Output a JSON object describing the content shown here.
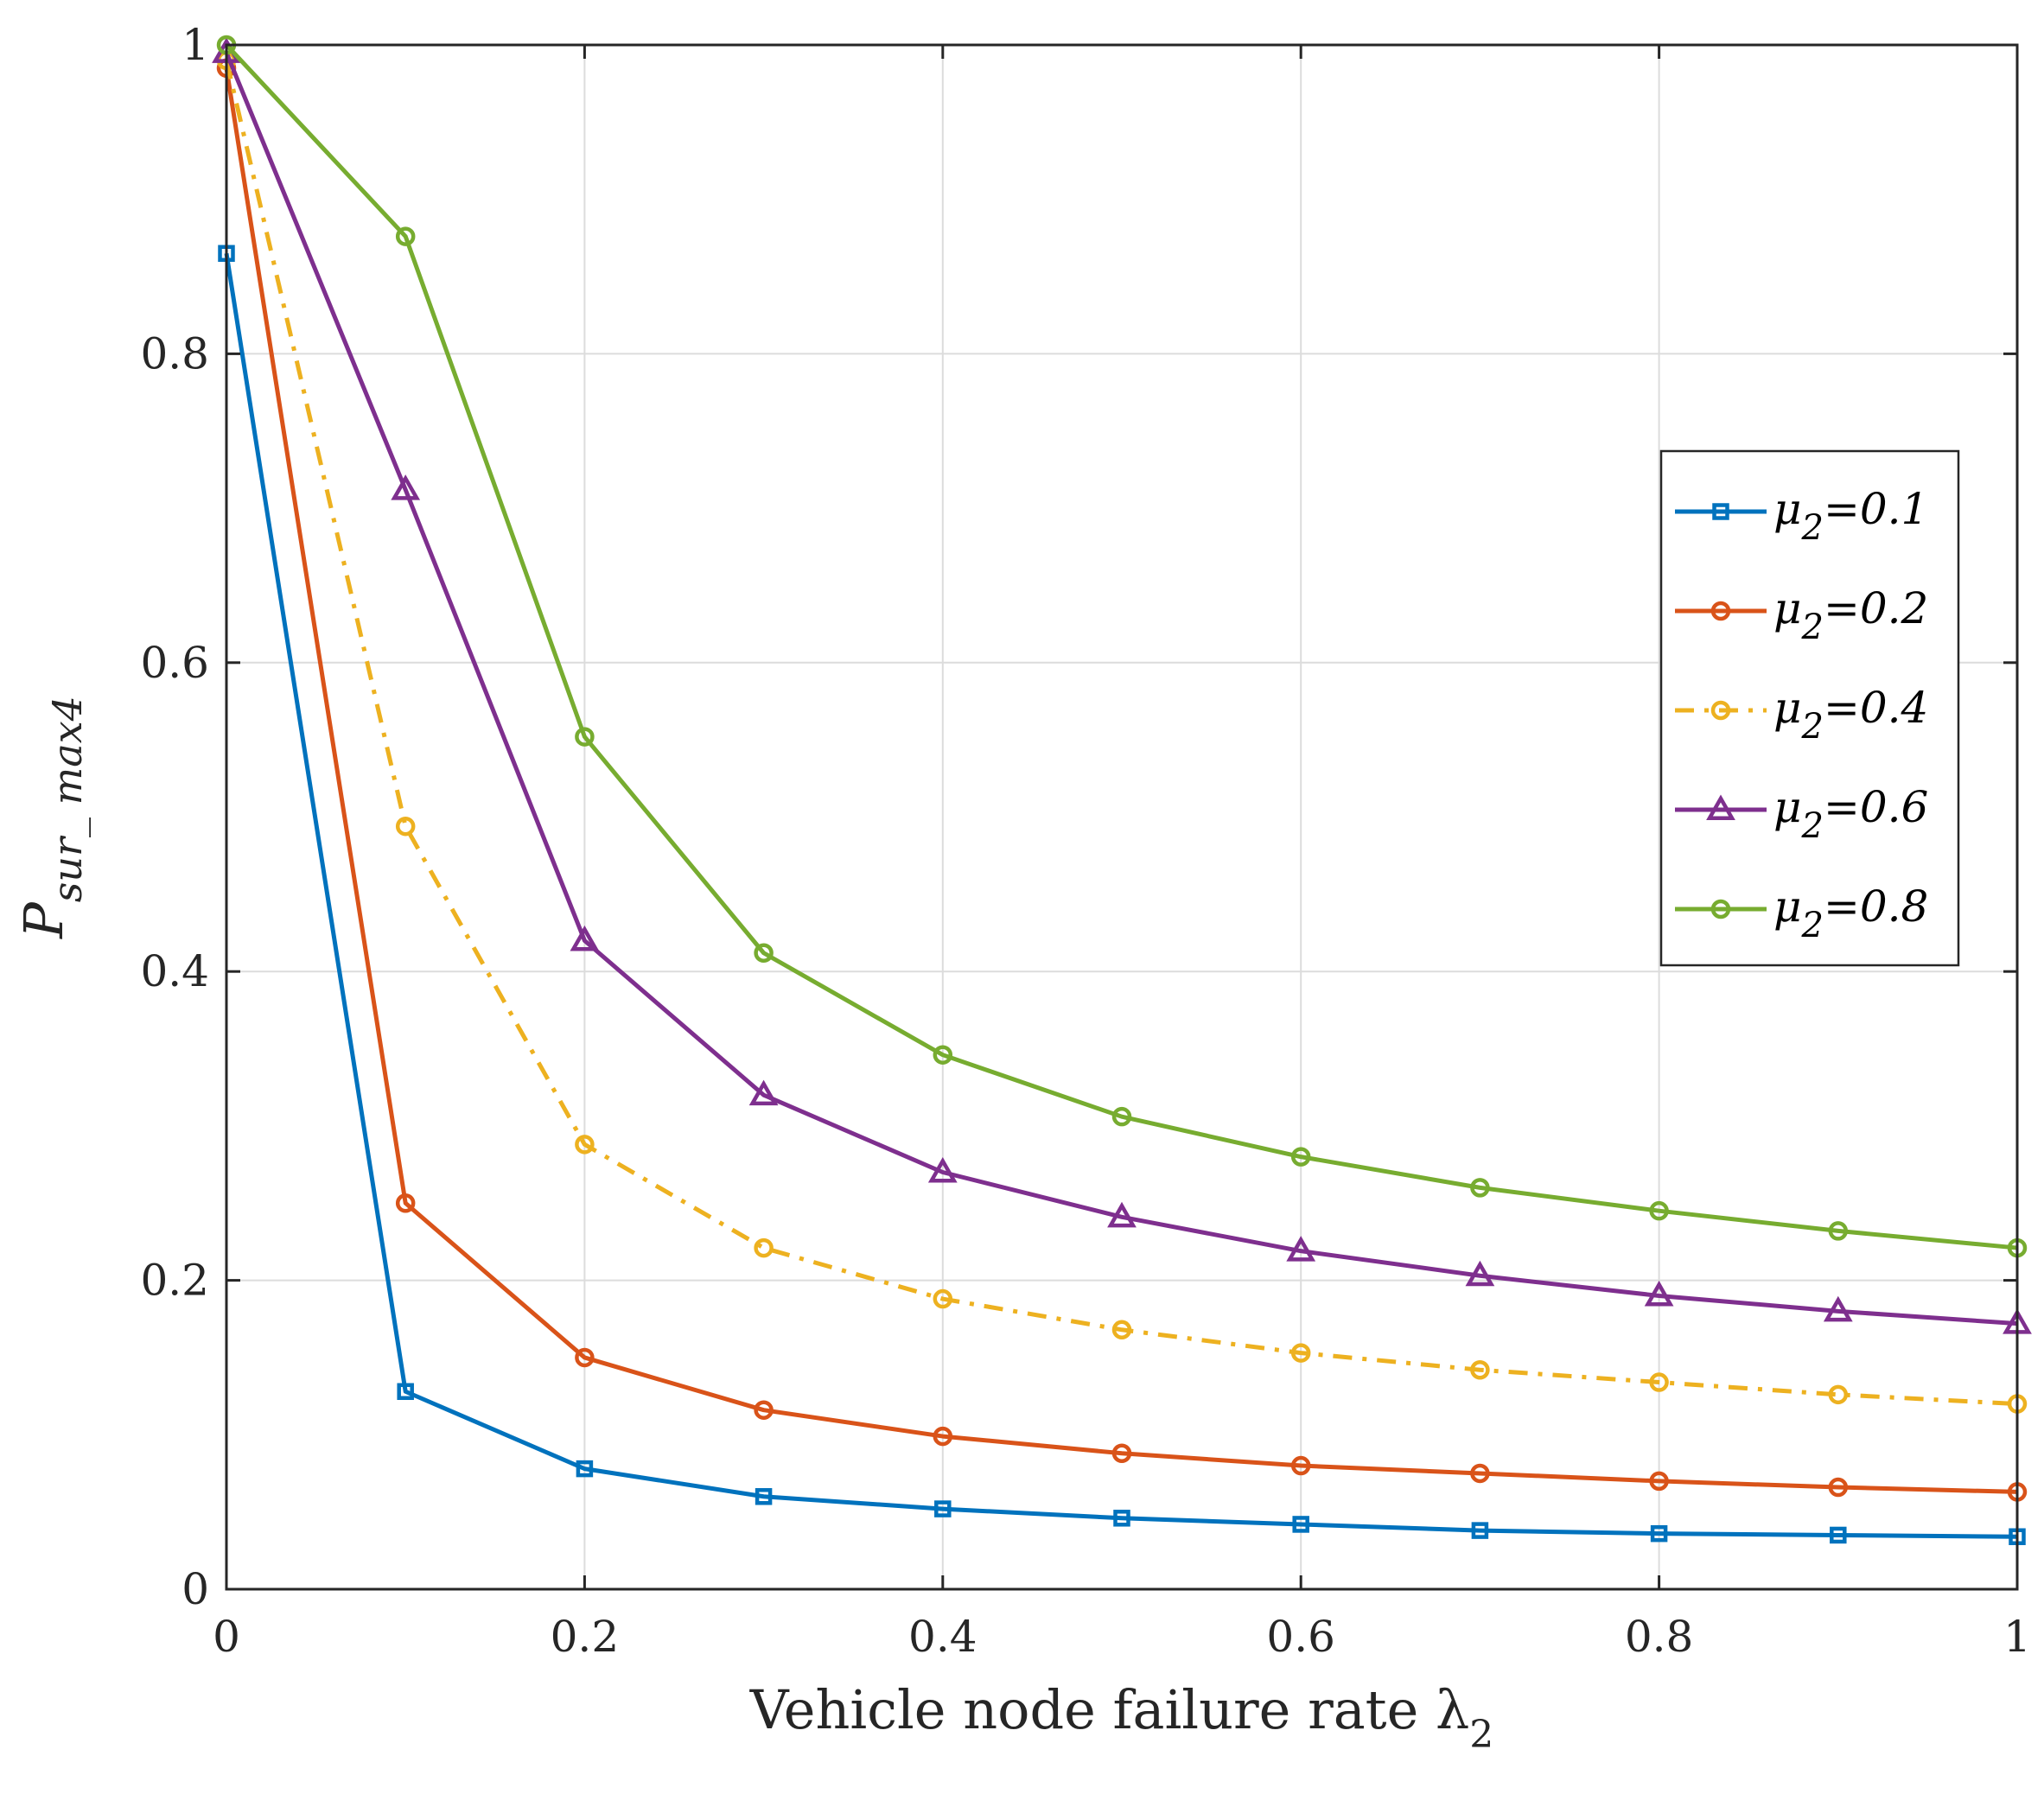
{
  "chart_data": {
    "type": "line",
    "title": "",
    "xlabel": "Vehicle node failure rate λ",
    "xlabel_sub": "2",
    "ylabel_main": "P",
    "ylabel_sub": "sur_ max4",
    "xlim": [
      0,
      1
    ],
    "ylim": [
      0,
      1
    ],
    "x_ticks": [
      {
        "value": 0,
        "label": "0"
      },
      {
        "value": 0.2,
        "label": "0.2"
      },
      {
        "value": 0.4,
        "label": "0.4"
      },
      {
        "value": 0.6,
        "label": "0.6"
      },
      {
        "value": 0.8,
        "label": "0.8"
      },
      {
        "value": 1,
        "label": "1"
      }
    ],
    "y_ticks": [
      {
        "value": 0,
        "label": "0"
      },
      {
        "value": 0.2,
        "label": "0.2"
      },
      {
        "value": 0.4,
        "label": "0.4"
      },
      {
        "value": 0.6,
        "label": "0.6"
      },
      {
        "value": 0.8,
        "label": "0.8"
      },
      {
        "value": 1,
        "label": "1"
      }
    ],
    "grid": true,
    "legend_position": "right",
    "x": [
      0,
      0.1,
      0.2,
      0.3,
      0.4,
      0.5,
      0.6,
      0.7,
      0.8,
      0.9,
      1.0
    ],
    "series": [
      {
        "name": "μ2=0.1",
        "legend_prefix": "μ",
        "legend_sub": "2",
        "legend_suffix": "=0.1",
        "color": "#0072BD",
        "marker": "square",
        "dash": "solid",
        "values": [
          0.865,
          0.128,
          0.078,
          0.06,
          0.052,
          0.046,
          0.042,
          0.038,
          0.036,
          0.035,
          0.034
        ]
      },
      {
        "name": "μ2=0.2",
        "legend_prefix": "μ",
        "legend_sub": "2",
        "legend_suffix": "=0.2",
        "color": "#D95319",
        "marker": "circle",
        "dash": "solid",
        "values": [
          0.985,
          0.25,
          0.15,
          0.116,
          0.099,
          0.088,
          0.08,
          0.075,
          0.07,
          0.066,
          0.063
        ]
      },
      {
        "name": "μ2=0.4",
        "legend_prefix": "μ",
        "legend_sub": "2",
        "legend_suffix": "=0.4",
        "color": "#EDB120",
        "marker": "circle",
        "dash": "dashdot",
        "values": [
          0.99,
          0.494,
          0.288,
          0.221,
          0.188,
          0.168,
          0.153,
          0.142,
          0.134,
          0.126,
          0.12
        ]
      },
      {
        "name": "μ2=0.6",
        "legend_prefix": "μ",
        "legend_sub": "2",
        "legend_suffix": "=0.6",
        "color": "#7E2F8E",
        "marker": "triangle",
        "dash": "solid",
        "values": [
          0.995,
          0.712,
          0.42,
          0.32,
          0.27,
          0.241,
          0.219,
          0.203,
          0.19,
          0.18,
          0.172
        ]
      },
      {
        "name": "μ2=0.8",
        "legend_prefix": "μ",
        "legend_sub": "2",
        "legend_suffix": "=0.8",
        "color": "#77AC30",
        "marker": "circle",
        "dash": "solid",
        "values": [
          1.0,
          0.876,
          0.552,
          0.412,
          0.346,
          0.306,
          0.28,
          0.26,
          0.245,
          0.232,
          0.221
        ]
      }
    ]
  }
}
